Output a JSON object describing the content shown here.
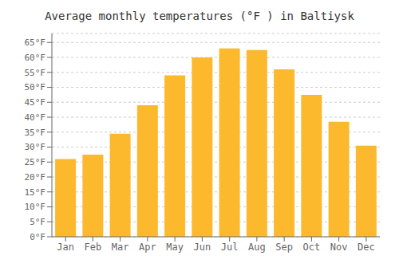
{
  "chart_data": {
    "type": "bar",
    "title": "Average monthly temperatures (°F ) in Baltiysk",
    "categories": [
      "Jan",
      "Feb",
      "Mar",
      "Apr",
      "May",
      "Jun",
      "Jul",
      "Aug",
      "Sep",
      "Oct",
      "Nov",
      "Dec"
    ],
    "values": [
      26,
      27.5,
      34.5,
      44,
      54,
      60,
      63,
      62.5,
      56,
      47.5,
      38.5,
      30.5
    ],
    "color": "#FDB92E",
    "ylim": [
      0,
      68
    ],
    "yticks": [
      {
        "value": 0,
        "label": "0°F"
      },
      {
        "value": 5,
        "label": "5°F"
      },
      {
        "value": 10,
        "label": "10°F"
      },
      {
        "value": 15,
        "label": "15°F"
      },
      {
        "value": 20,
        "label": "20°F"
      },
      {
        "value": 25,
        "label": "25°F"
      },
      {
        "value": 30,
        "label": "30°F"
      },
      {
        "value": 35,
        "label": "35°F"
      },
      {
        "value": 40,
        "label": "40°F"
      },
      {
        "value": 45,
        "label": "45°F"
      },
      {
        "value": 50,
        "label": "50°F"
      },
      {
        "value": 55,
        "label": "55°F"
      },
      {
        "value": 60,
        "label": "60°F"
      },
      {
        "value": 65,
        "label": "65°F"
      }
    ],
    "grid": true
  }
}
